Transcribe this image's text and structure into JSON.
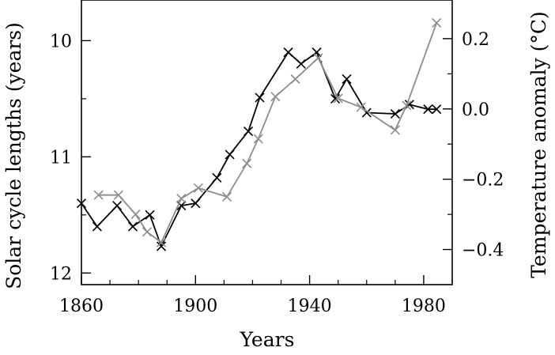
{
  "chart_data": {
    "type": "line",
    "xlabel": "Years",
    "ylabel_left": "Solar cycle lengths (years)",
    "ylabel_right": "Temperature anomaly (°C)",
    "xlim": [
      1860,
      1990
    ],
    "ylim_left": [
      12.1,
      9.65
    ],
    "ylim_right": [
      -0.5,
      0.31
    ],
    "x_ticks": [
      1860,
      1900,
      1940,
      1980
    ],
    "y_ticks_left": [
      10,
      11,
      12
    ],
    "y_ticks_right": [
      0.2,
      0.0,
      -0.2,
      -0.4
    ],
    "y_tick_labels_right": [
      "0.2",
      "0.0",
      "−0.2",
      "−0.4"
    ],
    "grid": false,
    "legend": "none",
    "series": [
      {
        "axis": "left",
        "color": "#000000",
        "marker": "x",
        "x": [
          1860,
          1865.5,
          1872.5,
          1878,
          1884,
          1888,
          1895,
          1900,
          1907.5,
          1912,
          1918.5,
          1922.5,
          1932.5,
          1937,
          1942.5,
          1949,
          1953,
          1960,
          1970,
          1975,
          1981.5,
          1984.5
        ],
        "values": [
          11.4,
          11.6,
          11.42,
          11.6,
          11.5,
          11.77,
          11.42,
          11.4,
          11.18,
          10.98,
          10.78,
          10.49,
          10.1,
          10.2,
          10.1,
          10.5,
          10.33,
          10.62,
          10.63,
          10.55,
          10.59,
          10.59
        ]
      },
      {
        "axis": "right",
        "color": "#8c8c8c",
        "marker": "x",
        "x": [
          1866,
          1873,
          1879,
          1883,
          1888,
          1895,
          1901,
          1911,
          1918,
          1922,
          1928,
          1935,
          1943,
          1950,
          1958,
          1970,
          1974,
          1984.5
        ],
        "values": [
          -0.245,
          -0.245,
          -0.3,
          -0.35,
          -0.38,
          -0.255,
          -0.225,
          -0.25,
          -0.155,
          -0.085,
          0.035,
          0.085,
          0.145,
          0.03,
          0.005,
          -0.06,
          0.01,
          0.245
        ]
      }
    ]
  }
}
